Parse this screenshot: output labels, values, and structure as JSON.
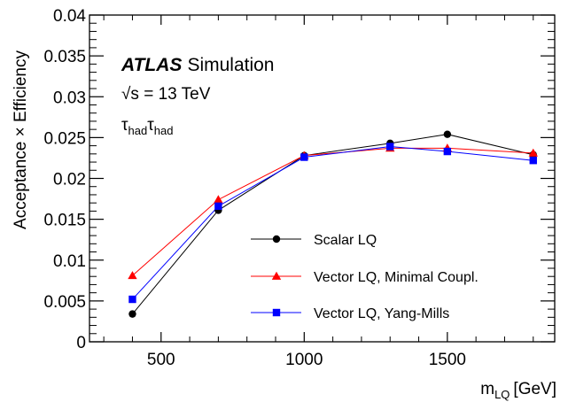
{
  "chart_data": {
    "type": "line",
    "x": [
      400,
      700,
      1000,
      1300,
      1500,
      1800
    ],
    "xlabel": "m",
    "xlabel_sub": "LQ",
    "xlabel_unit": "[GeV]",
    "ylabel": "Acceptance × Efficiency",
    "xlim": [
      250,
      1875
    ],
    "ylim": [
      0,
      0.04
    ],
    "xticks": [
      500,
      1000,
      1500
    ],
    "xtick_labels": [
      "500",
      "1000",
      "1500"
    ],
    "yticks": [
      0,
      0.005,
      0.01,
      0.015,
      0.02,
      0.025,
      0.03,
      0.035,
      0.04
    ],
    "ytick_labels": [
      "0",
      "0.005",
      "0.01",
      "0.015",
      "0.02",
      "0.025",
      "0.03",
      "0.035",
      "0.04"
    ],
    "grid": false,
    "legend_position": "bottom-right",
    "annotations": {
      "experiment": "ATLAS",
      "label": "Simulation",
      "energy": "√s = 13 TeV",
      "channel_tau1": "τ",
      "channel_tau2": "τ",
      "channel_sub": "had"
    },
    "series": [
      {
        "name": "Scalar LQ",
        "color": "#000000",
        "marker": "circle",
        "values": [
          0.0034,
          0.0161,
          0.0228,
          0.0243,
          0.0254,
          0.0229
        ]
      },
      {
        "name": "Vector LQ, Minimal Coupl.",
        "color": "#ff0000",
        "marker": "triangle",
        "values": [
          0.0081,
          0.0174,
          0.0228,
          0.0237,
          0.0237,
          0.0231
        ]
      },
      {
        "name": "Vector LQ, Yang-Mills",
        "color": "#0000ff",
        "marker": "square",
        "values": [
          0.0052,
          0.0166,
          0.0226,
          0.0239,
          0.0233,
          0.0222
        ]
      }
    ]
  }
}
